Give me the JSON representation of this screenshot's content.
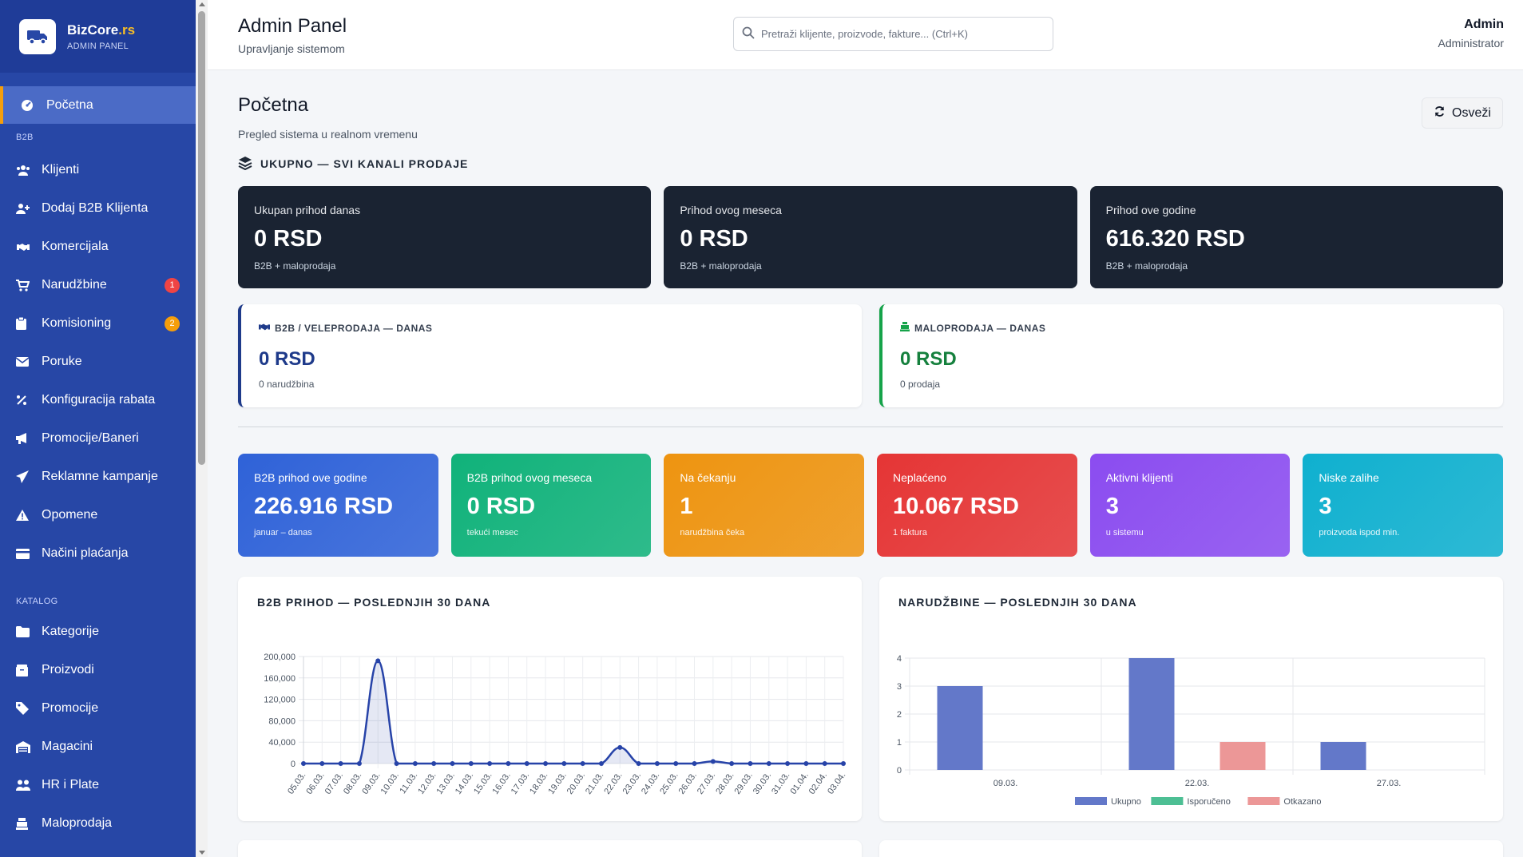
{
  "brand": {
    "name_main": "BizCore",
    "name_accent": ".rs",
    "subtitle": "ADMIN PANEL"
  },
  "sidebar": {
    "active": {
      "label": "Početna",
      "icon": "dashboard-icon"
    },
    "sections": [
      {
        "title": "B2B",
        "items": [
          {
            "label": "Klijenti",
            "icon": "users-icon",
            "name": "sidebar-item-klijenti"
          },
          {
            "label": "Dodaj B2B Klijenta",
            "icon": "user-plus-icon",
            "name": "sidebar-item-dodaj-klijenta"
          },
          {
            "label": "Komercijala",
            "icon": "handshake-icon",
            "name": "sidebar-item-komercijala"
          },
          {
            "label": "Narudžbine",
            "icon": "cart-icon",
            "name": "sidebar-item-narudzbine",
            "badge": "1",
            "badge_color": "#ef4444"
          },
          {
            "label": "Komisioning",
            "icon": "clipboard-icon",
            "name": "sidebar-item-komisioning",
            "badge": "2",
            "badge_color": "#f59e0b"
          },
          {
            "label": "Poruke",
            "icon": "envelope-icon",
            "name": "sidebar-item-poruke"
          },
          {
            "label": "Konfiguracija rabata",
            "icon": "percent-icon",
            "name": "sidebar-item-rabati"
          },
          {
            "label": "Promocije/Baneri",
            "icon": "megaphone-icon",
            "name": "sidebar-item-baneri"
          },
          {
            "label": "Reklamne kampanje",
            "icon": "paper-plane-icon",
            "name": "sidebar-item-kampanje"
          },
          {
            "label": "Opomene",
            "icon": "warning-icon",
            "name": "sidebar-item-opomene"
          },
          {
            "label": "Načini plaćanja",
            "icon": "credit-card-icon",
            "name": "sidebar-item-placanja"
          }
        ]
      },
      {
        "title": "KATALOG",
        "items": [
          {
            "label": "Kategorije",
            "icon": "folder-icon",
            "name": "sidebar-item-kategorije"
          },
          {
            "label": "Proizvodi",
            "icon": "box-icon",
            "name": "sidebar-item-proizvodi"
          },
          {
            "label": "Promocije",
            "icon": "tag-icon",
            "name": "sidebar-item-promocije"
          },
          {
            "label": "Magacini",
            "icon": "warehouse-icon",
            "name": "sidebar-item-magacini"
          },
          {
            "label": "HR i Plate",
            "icon": "people-icon",
            "name": "sidebar-item-hr"
          },
          {
            "label": "Maloprodaja",
            "icon": "register-icon",
            "name": "sidebar-item-maloprodaja"
          }
        ]
      }
    ]
  },
  "header": {
    "title": "Admin Panel",
    "subtitle": "Upravljanje sistemom",
    "search_placeholder": "Pretraži klijente, proizvode, fakture... (Ctrl+K)",
    "user_name": "Admin",
    "user_role": "Administrator"
  },
  "page": {
    "title": "Početna",
    "subtitle": "Pregled sistema u realnom vremenu",
    "refresh_label": "Osveži",
    "section_label": "UKUPNO — SVI KANALI PRODAJE"
  },
  "totals": [
    {
      "label": "Ukupan prihod danas",
      "value": "0 RSD",
      "sub": "B2B + maloprodaja"
    },
    {
      "label": "Prihod ovog meseca",
      "value": "0 RSD",
      "sub": "B2B + maloprodaja"
    },
    {
      "label": "Prihod ove godine",
      "value": "616.320 RSD",
      "sub": "B2B + maloprodaja"
    }
  ],
  "channels": {
    "b2b": {
      "label": "B2B / VELEPRODAJA — DANAS",
      "value": "0 RSD",
      "sub": "0 narudžbina"
    },
    "retail": {
      "label": "MALOPRODAJA — DANAS",
      "value": "0 RSD",
      "sub": "0 prodaja"
    }
  },
  "stats": [
    {
      "label": "B2B prihod ove godine",
      "value": "226.916 RSD",
      "sub": "januar – danas",
      "color": "#2f62d8"
    },
    {
      "label": "B2B prihod ovog meseca",
      "value": "0 RSD",
      "sub": "tekući mesec",
      "color": "#10b27a"
    },
    {
      "label": "Na čekanju",
      "value": "1",
      "sub": "narudžbina čeka",
      "color": "#ee9410"
    },
    {
      "label": "Neplaćeno",
      "value": "10.067 RSD",
      "sub": "1 faktura",
      "color": "#e53535"
    },
    {
      "label": "Aktivni klijenti",
      "value": "3",
      "sub": "u sistemu",
      "color": "#8b4cf0"
    },
    {
      "label": "Niske zalihe",
      "value": "3",
      "sub": "proizvoda ispod min.",
      "color": "#0fb0cf"
    }
  ],
  "chart_data": [
    {
      "type": "line",
      "title": "B2B PRIHOD — POSLEDNJIH 30 DANA",
      "x": [
        "05.03.",
        "06.03.",
        "07.03.",
        "08.03.",
        "09.03.",
        "10.03.",
        "11.03.",
        "12.03.",
        "13.03.",
        "14.03.",
        "15.03.",
        "16.03.",
        "17.03.",
        "18.03.",
        "19.03.",
        "20.03.",
        "21.03.",
        "22.03.",
        "23.03.",
        "24.03.",
        "25.03.",
        "26.03.",
        "27.03.",
        "28.03.",
        "29.03.",
        "30.03.",
        "31.03.",
        "01.04.",
        "02.04.",
        "03.04."
      ],
      "y": [
        0,
        0,
        0,
        0,
        192000,
        0,
        0,
        0,
        0,
        0,
        0,
        0,
        0,
        0,
        0,
        0,
        0,
        30000,
        0,
        0,
        0,
        0,
        4000,
        0,
        0,
        0,
        0,
        0,
        0,
        0
      ],
      "ylim": [
        0,
        200000
      ],
      "yticks": [
        "200,000",
        "160,000",
        "120,000",
        "80,000",
        "40,000",
        "0"
      ],
      "ytick_values": [
        200000,
        160000,
        120000,
        80000,
        40000,
        0
      ],
      "color": "#2743a8",
      "grid": true
    },
    {
      "type": "bar",
      "title": "NARUDŽBINE — POSLEDNJIH 30 DANA",
      "categories": [
        "09.03.",
        "22.03.",
        "27.03."
      ],
      "series": [
        {
          "name": "Ukupno",
          "values": [
            3,
            4,
            1
          ],
          "color": "#6378c9"
        },
        {
          "name": "Isporučeno",
          "values": [
            0,
            0,
            0
          ],
          "color": "#4dbf94"
        },
        {
          "name": "Otkazano",
          "values": [
            0,
            1,
            0
          ],
          "color": "#ec9797"
        }
      ],
      "ylim": [
        0,
        4
      ],
      "yticks": [
        "4",
        "3",
        "2",
        "1",
        "0"
      ],
      "legend": "bottom",
      "grid": true
    }
  ]
}
